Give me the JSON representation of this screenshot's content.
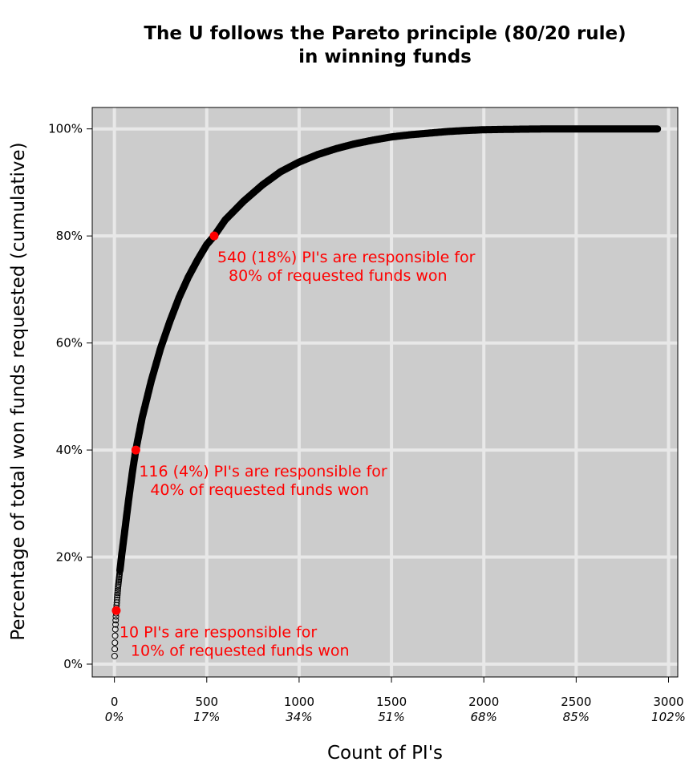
{
  "chart_data": {
    "type": "scatter",
    "title_lines": [
      "The U follows the Pareto principle (80/20 rule)",
      "in winning funds"
    ],
    "xlabel": "Count of PI's",
    "ylabel": "Percentage of total won funds requested (cumulative)",
    "xlim": [
      -120,
      3050
    ],
    "ylim": [
      -2.4,
      104
    ],
    "x_ticks": [
      {
        "value": 0,
        "label": "0",
        "pct_label": "0%"
      },
      {
        "value": 500,
        "label": "500",
        "pct_label": "17%"
      },
      {
        "value": 1000,
        "label": "1000",
        "pct_label": "34%"
      },
      {
        "value": 1500,
        "label": "1500",
        "pct_label": "51%"
      },
      {
        "value": 2000,
        "label": "2000",
        "pct_label": "68%"
      },
      {
        "value": 2500,
        "label": "2500",
        "pct_label": "85%"
      },
      {
        "value": 3000,
        "label": "3000",
        "pct_label": "102%"
      }
    ],
    "y_ticks": [
      {
        "value": 0,
        "label": "0%"
      },
      {
        "value": 20,
        "label": "20%"
      },
      {
        "value": 40,
        "label": "40%"
      },
      {
        "value": 60,
        "label": "60%"
      },
      {
        "value": 80,
        "label": "80%"
      },
      {
        "value": 100,
        "label": "100%"
      }
    ],
    "grid": true,
    "curve_points": [
      [
        1,
        1.5
      ],
      [
        2,
        2.8
      ],
      [
        3,
        4
      ],
      [
        4,
        5.3
      ],
      [
        5,
        6.5
      ],
      [
        6,
        7.4
      ],
      [
        7,
        8.2
      ],
      [
        8,
        8.9
      ],
      [
        9,
        9.5
      ],
      [
        10,
        10
      ],
      [
        15,
        12.5
      ],
      [
        20,
        14.5
      ],
      [
        30,
        17.5
      ],
      [
        40,
        20.5
      ],
      [
        50,
        23.2
      ],
      [
        60,
        26
      ],
      [
        70,
        28.8
      ],
      [
        80,
        31.5
      ],
      [
        90,
        34
      ],
      [
        100,
        36.5
      ],
      [
        116,
        40
      ],
      [
        150,
        46
      ],
      [
        200,
        53
      ],
      [
        250,
        59
      ],
      [
        300,
        64
      ],
      [
        350,
        68.5
      ],
      [
        400,
        72.3
      ],
      [
        450,
        75.5
      ],
      [
        500,
        78.4
      ],
      [
        540,
        80
      ],
      [
        600,
        83
      ],
      [
        700,
        86.5
      ],
      [
        800,
        89.5
      ],
      [
        900,
        92
      ],
      [
        1000,
        93.8
      ],
      [
        1100,
        95.2
      ],
      [
        1200,
        96.3
      ],
      [
        1300,
        97.2
      ],
      [
        1400,
        97.9
      ],
      [
        1500,
        98.5
      ],
      [
        1600,
        98.9
      ],
      [
        1700,
        99.2
      ],
      [
        1800,
        99.5
      ],
      [
        1900,
        99.7
      ],
      [
        2000,
        99.85
      ],
      [
        2200,
        99.95
      ],
      [
        2400,
        100
      ],
      [
        2600,
        100
      ],
      [
        2800,
        100
      ],
      [
        2940,
        100
      ]
    ],
    "highlights": [
      {
        "x": 10,
        "y": 10,
        "text_lines": [
          "10 PI's are responsible for",
          "10% of requested funds won"
        ]
      },
      {
        "x": 116,
        "y": 40,
        "text_lines": [
          "116 (4%) PI's are responsible for",
          "40% of requested funds won"
        ]
      },
      {
        "x": 540,
        "y": 80,
        "text_lines": [
          "540 (18%) PI's are responsible for",
          "80% of requested funds won"
        ]
      }
    ],
    "colors": {
      "panel_background": "#cccccc",
      "grid": "#e8e8e8",
      "points": "#000000",
      "highlight": "#ff0000"
    }
  }
}
